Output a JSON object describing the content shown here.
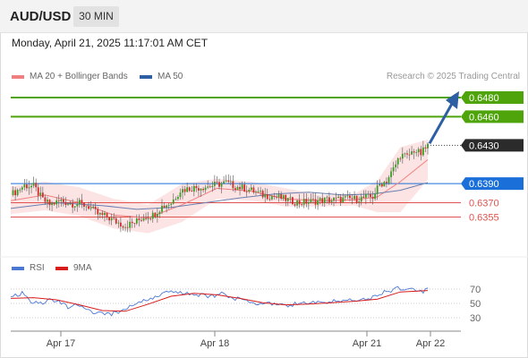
{
  "header": {
    "symbol": "AUD/USD",
    "timeframe_tab": "30 MIN"
  },
  "datetime": "Monday, April 21, 2025 11:17:01 AM CET",
  "legend": {
    "ma20_label": "MA 20 + Bollinger Bands",
    "ma20_color": "#f08080",
    "ma50_label": "MA 50",
    "ma50_color": "#2e5fa3",
    "credit": "Research © 2025 Trading Central"
  },
  "rsi_legend": {
    "rsi_label": "RSI",
    "rsi_color": "#4a78d4",
    "ma_label": "9MA",
    "ma_color": "#d81b1b"
  },
  "colors": {
    "target_line": "#4ea40a",
    "pivot": "#1a6fd8",
    "support": "#e0534e",
    "current": "#2b2b2b",
    "arrow": "#2e5fa3",
    "candle_up": "#3a9d23",
    "candle_down": "#d42a2a",
    "band_fill": "#fde1e1"
  },
  "chart_data": [
    {
      "type": "candlestick",
      "x_ticks": [
        "Apr 17",
        "Apr 18",
        "Apr 21",
        "Apr 22"
      ],
      "ylim": [
        0.6318,
        0.6494
      ],
      "levels": [
        {
          "value": 0.648,
          "label": "0.6480",
          "kind": "target"
        },
        {
          "value": 0.646,
          "label": "0.6460",
          "kind": "target"
        },
        {
          "value": 0.643,
          "label": "0.6430",
          "kind": "current"
        },
        {
          "value": 0.639,
          "label": "0.6390",
          "kind": "pivot"
        },
        {
          "value": 0.637,
          "label": "0.6370",
          "kind": "support"
        },
        {
          "value": 0.6355,
          "label": "0.6355",
          "kind": "support"
        }
      ],
      "close_path": [
        [
          0,
          0.6378
        ],
        [
          6,
          0.6388
        ],
        [
          10,
          0.6387
        ],
        [
          14,
          0.6373
        ],
        [
          17,
          0.6368
        ],
        [
          22,
          0.6372
        ],
        [
          26,
          0.6369
        ],
        [
          30,
          0.6369
        ],
        [
          34,
          0.6366
        ],
        [
          38,
          0.6358
        ],
        [
          42,
          0.6355
        ],
        [
          46,
          0.635
        ],
        [
          50,
          0.6346
        ],
        [
          54,
          0.6349
        ],
        [
          58,
          0.6355
        ],
        [
          62,
          0.6357
        ],
        [
          66,
          0.6366
        ],
        [
          70,
          0.637
        ],
        [
          74,
          0.6383
        ],
        [
          78,
          0.6385
        ],
        [
          82,
          0.6386
        ],
        [
          86,
          0.6387
        ],
        [
          90,
          0.6389
        ],
        [
          94,
          0.6391
        ],
        [
          98,
          0.6387
        ],
        [
          102,
          0.6385
        ],
        [
          106,
          0.6382
        ],
        [
          110,
          0.6378
        ],
        [
          114,
          0.6377
        ],
        [
          118,
          0.6375
        ],
        [
          122,
          0.6372
        ],
        [
          126,
          0.637
        ],
        [
          130,
          0.6371
        ],
        [
          134,
          0.6372
        ],
        [
          138,
          0.6373
        ],
        [
          142,
          0.6373
        ],
        [
          146,
          0.6374
        ],
        [
          150,
          0.6374
        ],
        [
          154,
          0.6375
        ],
        [
          158,
          0.6376
        ],
        [
          161,
          0.6389
        ],
        [
          164,
          0.6393
        ],
        [
          167,
          0.6405
        ],
        [
          170,
          0.642
        ],
        [
          173,
          0.6418
        ],
        [
          176,
          0.6425
        ],
        [
          179,
          0.6421
        ],
        [
          182,
          0.643
        ]
      ],
      "ma20_band": {
        "mid": [
          [
            0,
            0.6372
          ],
          [
            15,
            0.6378
          ],
          [
            30,
            0.637
          ],
          [
            45,
            0.6357
          ],
          [
            60,
            0.6354
          ],
          [
            75,
            0.6368
          ],
          [
            90,
            0.6385
          ],
          [
            105,
            0.6382
          ],
          [
            120,
            0.6374
          ],
          [
            135,
            0.6372
          ],
          [
            150,
            0.6373
          ],
          [
            160,
            0.6376
          ],
          [
            170,
            0.6392
          ],
          [
            182,
            0.6415
          ]
        ],
        "upper": [
          [
            0,
            0.6387
          ],
          [
            15,
            0.6392
          ],
          [
            30,
            0.6386
          ],
          [
            45,
            0.6374
          ],
          [
            60,
            0.6368
          ],
          [
            75,
            0.639
          ],
          [
            90,
            0.6395
          ],
          [
            105,
            0.6392
          ],
          [
            120,
            0.6385
          ],
          [
            135,
            0.6378
          ],
          [
            150,
            0.6379
          ],
          [
            160,
            0.6393
          ],
          [
            170,
            0.6428
          ],
          [
            182,
            0.6436
          ]
        ],
        "lower": [
          [
            0,
            0.6358
          ],
          [
            15,
            0.6362
          ],
          [
            30,
            0.6356
          ],
          [
            45,
            0.6343
          ],
          [
            60,
            0.6338
          ],
          [
            75,
            0.635
          ],
          [
            90,
            0.6374
          ],
          [
            105,
            0.6372
          ],
          [
            120,
            0.6366
          ],
          [
            135,
            0.6366
          ],
          [
            150,
            0.6367
          ],
          [
            160,
            0.636
          ],
          [
            170,
            0.636
          ],
          [
            182,
            0.6394
          ]
        ]
      },
      "ma50": [
        [
          0,
          0.6364
        ],
        [
          20,
          0.637
        ],
        [
          40,
          0.6367
        ],
        [
          55,
          0.6363
        ],
        [
          70,
          0.6365
        ],
        [
          85,
          0.637
        ],
        [
          100,
          0.6375
        ],
        [
          115,
          0.6379
        ],
        [
          130,
          0.6381
        ],
        [
          145,
          0.6378
        ],
        [
          158,
          0.6379
        ],
        [
          170,
          0.6383
        ],
        [
          182,
          0.6391
        ]
      ],
      "projection": {
        "from_value": 0.6432,
        "to_value": 0.6481
      }
    },
    {
      "type": "line",
      "title": "RSI",
      "ylim": [
        15,
        85
      ],
      "y_ticks": [
        70,
        50,
        30
      ],
      "rsi": [
        [
          0,
          58
        ],
        [
          5,
          64
        ],
        [
          9,
          51
        ],
        [
          13,
          49
        ],
        [
          17,
          56
        ],
        [
          21,
          52
        ],
        [
          25,
          45
        ],
        [
          29,
          47
        ],
        [
          33,
          41
        ],
        [
          37,
          37
        ],
        [
          41,
          34
        ],
        [
          45,
          36
        ],
        [
          49,
          40
        ],
        [
          53,
          48
        ],
        [
          57,
          53
        ],
        [
          61,
          57
        ],
        [
          65,
          62
        ],
        [
          69,
          66
        ],
        [
          73,
          64
        ],
        [
          77,
          65
        ],
        [
          81,
          63
        ],
        [
          85,
          61
        ],
        [
          89,
          60
        ],
        [
          93,
          65
        ],
        [
          97,
          57
        ],
        [
          101,
          55
        ],
        [
          105,
          52
        ],
        [
          109,
          50
        ],
        [
          113,
          51
        ],
        [
          117,
          47
        ],
        [
          121,
          48
        ],
        [
          125,
          49
        ],
        [
          129,
          50
        ],
        [
          133,
          51
        ],
        [
          137,
          52
        ],
        [
          141,
          53
        ],
        [
          145,
          54
        ],
        [
          149,
          55
        ],
        [
          153,
          56
        ],
        [
          157,
          58
        ],
        [
          160,
          62
        ],
        [
          163,
          66
        ],
        [
          166,
          68
        ],
        [
          169,
          73
        ],
        [
          172,
          67
        ],
        [
          175,
          70
        ],
        [
          178,
          65
        ],
        [
          182,
          69
        ]
      ],
      "ma9": [
        [
          0,
          57
        ],
        [
          10,
          58
        ],
        [
          20,
          55
        ],
        [
          30,
          48
        ],
        [
          40,
          40
        ],
        [
          50,
          39
        ],
        [
          60,
          49
        ],
        [
          70,
          60
        ],
        [
          80,
          64
        ],
        [
          90,
          62
        ],
        [
          100,
          57
        ],
        [
          110,
          51
        ],
        [
          120,
          48
        ],
        [
          130,
          49
        ],
        [
          140,
          51
        ],
        [
          150,
          53
        ],
        [
          160,
          56
        ],
        [
          170,
          66
        ],
        [
          182,
          68
        ]
      ]
    }
  ]
}
